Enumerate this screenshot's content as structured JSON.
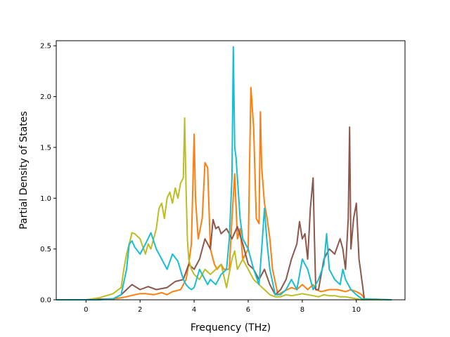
{
  "chart_data": {
    "type": "line",
    "title": "",
    "xlabel": "Frequency (THz)",
    "ylabel": "Partial Density of States",
    "xlim": [
      -1.1,
      11.8
    ],
    "ylim": [
      0,
      2.55
    ],
    "xticks": [
      0,
      2,
      4,
      6,
      8,
      10
    ],
    "yticks": [
      0.0,
      0.5,
      1.0,
      1.5,
      2.0,
      2.5
    ],
    "xtick_labels": [
      "0",
      "2",
      "4",
      "6",
      "8",
      "10"
    ],
    "ytick_labels": [
      "0.0",
      "0.5",
      "1.0",
      "1.5",
      "2.0",
      "2.5"
    ],
    "grid": false,
    "legend": "none",
    "series": [
      {
        "color": "#ff7f0e",
        "x": [
          -1.1,
          0,
          0.5,
          1,
          1.3,
          1.5,
          1.8,
          2.0,
          2.2,
          2.5,
          2.8,
          3.0,
          3.2,
          3.5,
          3.7,
          3.8,
          3.9,
          4.0,
          4.05,
          4.15,
          4.3,
          4.4,
          4.5,
          4.6,
          4.75,
          4.85,
          5.0,
          5.1,
          5.3,
          5.4,
          5.5,
          5.6,
          5.7,
          5.8,
          6.0,
          6.1,
          6.2,
          6.3,
          6.4,
          6.45,
          6.5,
          6.6,
          6.7,
          6.8,
          6.9,
          7.1,
          7.3,
          7.6,
          7.8,
          8.0,
          8.2,
          8.4,
          8.5,
          8.7,
          9.0,
          9.3,
          9.6,
          9.8,
          10.0,
          10.2,
          10.3,
          11.3
        ],
        "y": [
          0,
          0,
          0.005,
          0.01,
          0.02,
          0.03,
          0.05,
          0.06,
          0.06,
          0.05,
          0.07,
          0.05,
          0.08,
          0.1,
          0.2,
          0.35,
          0.55,
          1.63,
          1.0,
          0.6,
          0.8,
          1.35,
          1.3,
          0.5,
          0.35,
          0.3,
          0.35,
          0.3,
          0.3,
          0.8,
          1.24,
          0.6,
          0.7,
          0.4,
          0.5,
          2.09,
          1.7,
          0.8,
          0.75,
          1.85,
          1.3,
          0.95,
          0.8,
          0.6,
          0.3,
          0.05,
          0.08,
          0.12,
          0.1,
          0.15,
          0.1,
          0.15,
          0.1,
          0.08,
          0.1,
          0.1,
          0.08,
          0.1,
          0.08,
          0.05,
          0.01,
          0
        ]
      },
      {
        "color": "#8c564b",
        "x": [
          -1.1,
          0,
          0.5,
          1,
          1.3,
          1.5,
          1.7,
          2.0,
          2.3,
          2.6,
          3.0,
          3.3,
          3.6,
          3.8,
          4.0,
          4.2,
          4.4,
          4.6,
          4.7,
          4.8,
          4.9,
          5.0,
          5.2,
          5.4,
          5.6,
          5.8,
          6.0,
          6.2,
          6.4,
          6.6,
          6.8,
          7.0,
          7.2,
          7.4,
          7.6,
          7.8,
          7.9,
          8.0,
          8.1,
          8.2,
          8.3,
          8.4,
          8.45,
          8.5,
          8.6,
          8.8,
          9.0,
          9.2,
          9.4,
          9.5,
          9.6,
          9.7,
          9.75,
          9.8,
          9.9,
          10.0,
          10.1,
          10.2,
          10.3,
          11.3
        ],
        "y": [
          0,
          0,
          0.005,
          0.01,
          0.05,
          0.1,
          0.15,
          0.1,
          0.13,
          0.1,
          0.12,
          0.18,
          0.2,
          0.35,
          0.3,
          0.4,
          0.6,
          0.5,
          0.79,
          0.7,
          0.72,
          0.65,
          0.7,
          0.6,
          0.72,
          0.55,
          0.35,
          0.3,
          0.2,
          0.3,
          0.15,
          0.05,
          0.1,
          0.2,
          0.4,
          0.55,
          0.77,
          0.6,
          0.65,
          0.4,
          0.9,
          1.2,
          0.6,
          0.1,
          0.1,
          0.4,
          0.5,
          0.45,
          0.6,
          0.5,
          0.3,
          0.8,
          1.7,
          0.5,
          0.8,
          0.95,
          0.4,
          0.2,
          0,
          0
        ]
      },
      {
        "color": "#bcbd22",
        "x": [
          -1.1,
          0,
          0.5,
          1,
          1.3,
          1.4,
          1.5,
          1.6,
          1.7,
          1.8,
          2.0,
          2.2,
          2.3,
          2.4,
          2.5,
          2.6,
          2.7,
          2.8,
          2.9,
          3.0,
          3.1,
          3.2,
          3.3,
          3.4,
          3.5,
          3.6,
          3.65,
          3.7,
          3.75,
          3.8,
          3.9,
          4.0,
          4.2,
          4.4,
          4.6,
          4.8,
          5.0,
          5.2,
          5.4,
          5.5,
          5.6,
          5.8,
          6.0,
          6.2,
          6.4,
          6.6,
          6.8,
          7.0,
          7.2,
          7.4,
          7.6,
          7.8,
          8.0,
          8.2,
          8.4,
          8.6,
          8.8,
          9.0,
          9.2,
          9.4,
          9.6,
          9.8,
          10.0,
          10.2,
          11.3
        ],
        "y": [
          0,
          0,
          0.02,
          0.06,
          0.12,
          0.3,
          0.45,
          0.55,
          0.66,
          0.65,
          0.6,
          0.45,
          0.55,
          0.5,
          0.6,
          0.7,
          0.9,
          0.95,
          0.8,
          1.0,
          1.06,
          0.95,
          1.1,
          1.0,
          1.15,
          1.2,
          1.79,
          1.1,
          0.6,
          0.4,
          0.3,
          0.25,
          0.2,
          0.3,
          0.25,
          0.3,
          0.35,
          0.12,
          0.4,
          0.48,
          0.3,
          0.4,
          0.3,
          0.2,
          0.15,
          0.1,
          0.05,
          0.03,
          0.03,
          0.05,
          0.04,
          0.05,
          0.06,
          0.05,
          0.04,
          0.03,
          0.05,
          0.04,
          0.04,
          0.03,
          0.03,
          0.02,
          0.01,
          0,
          0
        ]
      },
      {
        "color": "#17becf",
        "x": [
          -1.1,
          0,
          0.5,
          1,
          1.3,
          1.5,
          1.6,
          1.7,
          1.8,
          2.0,
          2.2,
          2.4,
          2.6,
          2.8,
          3.0,
          3.2,
          3.4,
          3.6,
          3.7,
          3.8,
          3.9,
          4.0,
          4.2,
          4.4,
          4.5,
          4.6,
          4.8,
          5.0,
          5.2,
          5.3,
          5.4,
          5.45,
          5.5,
          5.55,
          5.6,
          5.7,
          5.8,
          5.9,
          6.0,
          6.2,
          6.4,
          6.5,
          6.6,
          6.7,
          6.8,
          7.0,
          7.2,
          7.4,
          7.6,
          7.8,
          8.0,
          8.2,
          8.4,
          8.6,
          8.8,
          8.9,
          9.0,
          9.2,
          9.4,
          9.5,
          9.6,
          9.8,
          10.0,
          10.2,
          11.3
        ],
        "y": [
          0,
          0,
          0,
          0.01,
          0.05,
          0.3,
          0.55,
          0.58,
          0.52,
          0.45,
          0.55,
          0.66,
          0.5,
          0.4,
          0.3,
          0.45,
          0.38,
          0.2,
          0.15,
          0.12,
          0.1,
          0.12,
          0.3,
          0.2,
          0.15,
          0.2,
          0.15,
          0.25,
          0.3,
          0.6,
          1.2,
          2.49,
          1.5,
          1.4,
          1.2,
          0.8,
          0.6,
          0.55,
          0.5,
          0.3,
          0.15,
          0.5,
          0.9,
          0.55,
          0.3,
          0.05,
          0.05,
          0.1,
          0.2,
          0.1,
          0.4,
          0.3,
          0.1,
          0.2,
          0.35,
          0.65,
          0.3,
          0.2,
          0.15,
          0.3,
          0.2,
          0.1,
          0.05,
          0.01,
          0
        ]
      }
    ]
  }
}
